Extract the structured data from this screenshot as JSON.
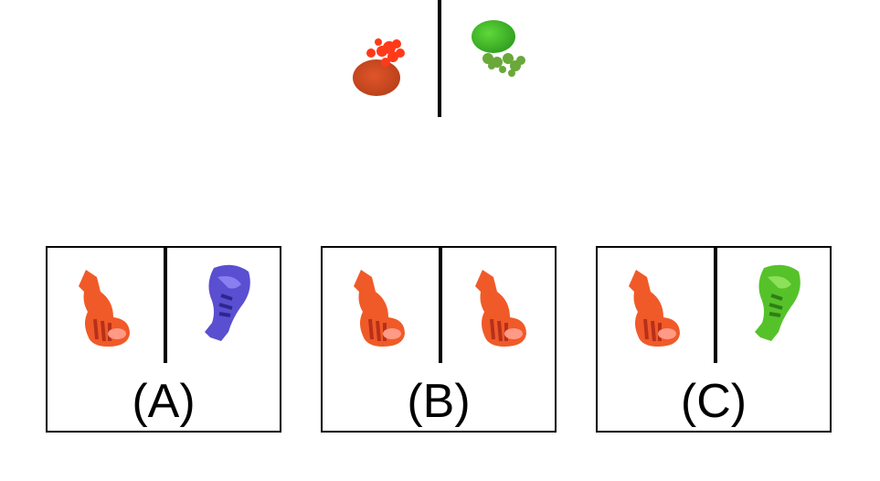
{
  "reference": {
    "left_shape": {
      "icon": "red-tree-shape-icon",
      "color": "#e24a1f"
    },
    "right_shape": {
      "icon": "green-tree-shape-icon",
      "color": "#4ec22e"
    }
  },
  "options": [
    {
      "label": "(A)",
      "left_icon": "orange-fox-icon",
      "right_icon": "blue-rotated-fox-icon",
      "left_color": "#f05a28",
      "right_color": "#5a4fd0"
    },
    {
      "label": "(B)",
      "left_icon": "orange-fox-icon",
      "right_icon": "orange-fox-icon",
      "left_color": "#f05a28",
      "right_color": "#f05a28"
    },
    {
      "label": "(C)",
      "left_icon": "orange-fox-icon",
      "right_icon": "green-rotated-fox-icon",
      "left_color": "#f05a28",
      "right_color": "#56c22a"
    }
  ]
}
